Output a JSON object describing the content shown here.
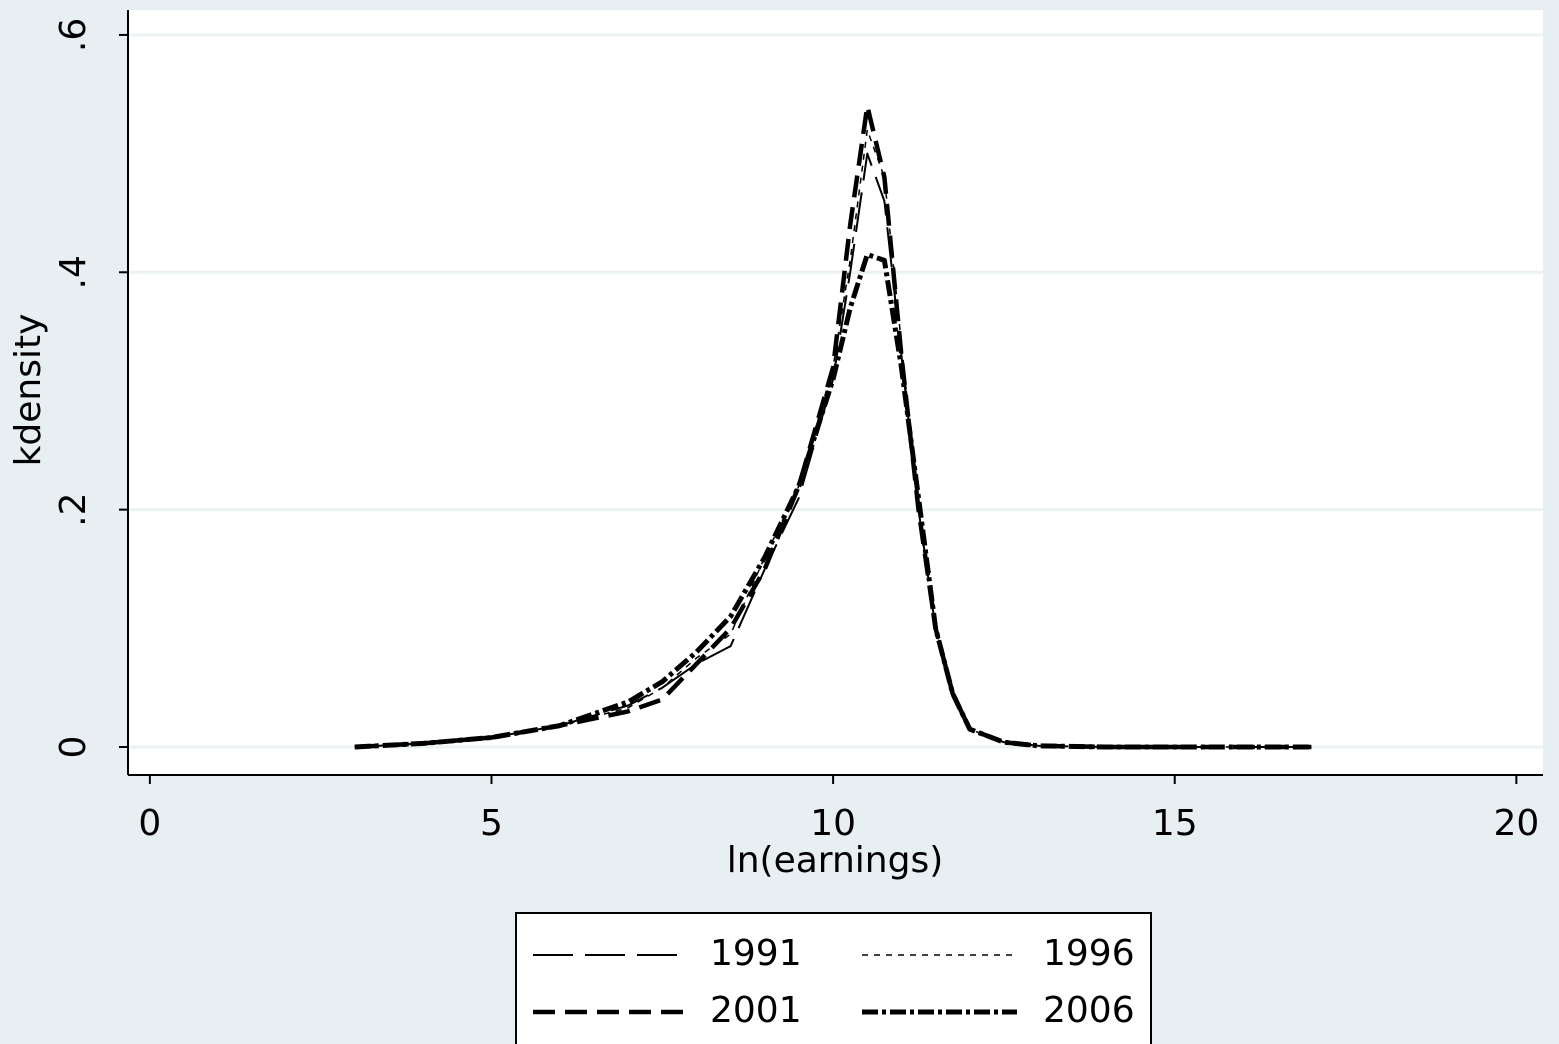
{
  "chart_data": {
    "type": "line",
    "x_label": "ln(earnings)",
    "y_label": "kdensity",
    "x": [
      3,
      4,
      5,
      6,
      7,
      7.5,
      8,
      8.5,
      9,
      9.5,
      10,
      10.25,
      10.5,
      10.75,
      11,
      11.25,
      11.5,
      11.75,
      12,
      12.5,
      13,
      14,
      15,
      16,
      17
    ],
    "series": [
      {
        "name": "1991",
        "color": "#000000",
        "values": [
          0,
          0.003,
          0.008,
          0.018,
          0.035,
          0.05,
          0.07,
          0.085,
          0.15,
          0.21,
          0.31,
          0.4,
          0.5,
          0.46,
          0.33,
          0.2,
          0.1,
          0.045,
          0.015,
          0.004,
          0.001,
          0,
          0,
          0,
          0
        ]
      },
      {
        "name": "1996",
        "color": "#000000",
        "values": [
          0,
          0.003,
          0.008,
          0.018,
          0.033,
          0.05,
          0.075,
          0.095,
          0.16,
          0.22,
          0.32,
          0.41,
          0.52,
          0.48,
          0.34,
          0.2,
          0.1,
          0.045,
          0.015,
          0.004,
          0.001,
          0,
          0,
          0,
          0
        ]
      },
      {
        "name": "2001",
        "color": "#000000",
        "values": [
          0,
          0.003,
          0.008,
          0.018,
          0.03,
          0.04,
          0.07,
          0.1,
          0.15,
          0.22,
          0.32,
          0.44,
          0.54,
          0.48,
          0.33,
          0.2,
          0.1,
          0.045,
          0.015,
          0.004,
          0.001,
          0,
          0,
          0,
          0
        ]
      },
      {
        "name": "2006",
        "color": "#000000",
        "values": [
          0,
          0.003,
          0.008,
          0.018,
          0.038,
          0.055,
          0.08,
          0.11,
          0.16,
          0.22,
          0.31,
          0.37,
          0.415,
          0.41,
          0.32,
          0.21,
          0.1,
          0.045,
          0.015,
          0.004,
          0.001,
          0,
          0,
          0,
          0
        ]
      }
    ],
    "xlim": [
      -0.32,
      20.39
    ],
    "xticks": [
      0,
      5,
      10,
      15,
      20
    ],
    "ylim": [
      -0.0236,
      0.621
    ],
    "yticks": [
      0,
      {
        "value": 0.2,
        "label": ".2"
      },
      {
        "value": 0.4,
        "label": ".4"
      },
      {
        "value": 0.6,
        "label": ".6"
      }
    ],
    "grid": true,
    "legend": "bottom"
  }
}
